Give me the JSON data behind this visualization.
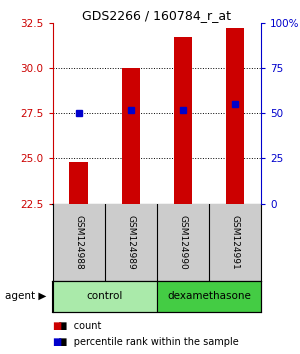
{
  "title": "GDS2266 / 160784_r_at",
  "samples": [
    "GSM124988",
    "GSM124989",
    "GSM124990",
    "GSM124991"
  ],
  "bar_values": [
    24.82,
    30.02,
    31.72,
    32.22
  ],
  "percentile_values": [
    50,
    52,
    52,
    55
  ],
  "ylim_left": [
    22.5,
    32.5
  ],
  "ylim_right": [
    0,
    100
  ],
  "left_ticks": [
    22.5,
    25.0,
    27.5,
    30.0,
    32.5
  ],
  "right_ticks": [
    0,
    25,
    50,
    75,
    100
  ],
  "bar_color": "#cc0000",
  "percentile_color": "#0000cc",
  "bar_bottom": 22.5,
  "groups": [
    {
      "label": "control",
      "samples": [
        0,
        1
      ],
      "color": "#aaeaaa"
    },
    {
      "label": "dexamethasone",
      "samples": [
        2,
        3
      ],
      "color": "#44cc44"
    }
  ],
  "left_axis_color": "#cc0000",
  "right_axis_color": "#0000cc",
  "background_plot": "#ffffff",
  "background_label": "#cccccc",
  "bar_width": 0.35
}
